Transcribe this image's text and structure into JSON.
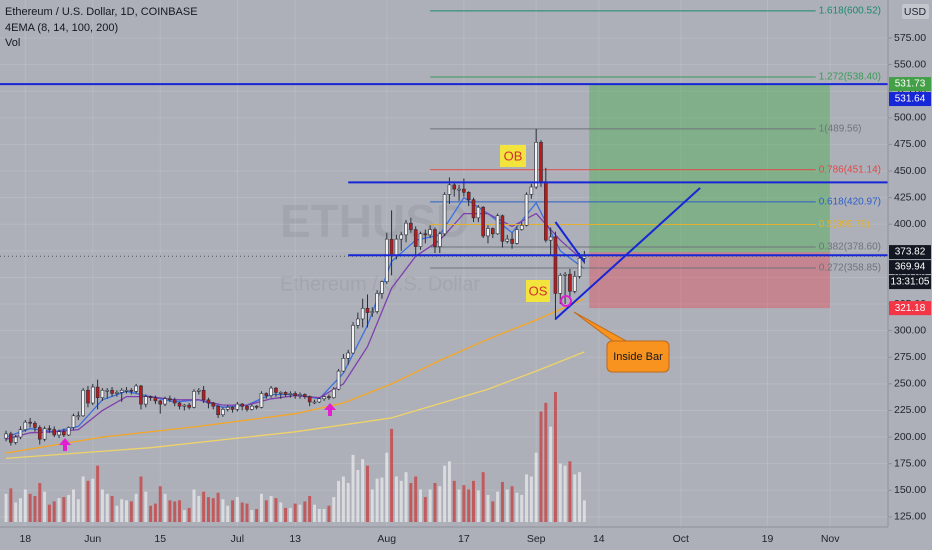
{
  "chart_data": {
    "type": "candlestick",
    "title": "Ethereum / U.S. Dollar, 1D, COINBASE",
    "indicator_label": "4EMA (8, 14, 100, 200)",
    "volume_label": "Vol",
    "currency": "USD",
    "watermark": "ETHUSD",
    "watermark_subtitle": "Ethereum / U.S. Dollar",
    "countdown": "13:31:05",
    "axis_label_color": "#131722",
    "up_color": "#f2f2f2",
    "down_color": "#b71c1c",
    "wick_color": "#2a2e39",
    "volume_up_color": "rgba(255,255,255,0.55)",
    "volume_down_color": "rgba(205,45,45,0.65)",
    "grid": true,
    "xlim": [
      -1.25,
      183
    ],
    "ylim": [
      115.5,
      610.7
    ],
    "xticks": [
      {
        "value": 4,
        "label": "18"
      },
      {
        "value": 18,
        "label": "Jun"
      },
      {
        "value": 32,
        "label": "15"
      },
      {
        "value": 48,
        "label": "Jul"
      },
      {
        "value": 60,
        "label": "13"
      },
      {
        "value": 79,
        "label": "Aug"
      },
      {
        "value": 95,
        "label": "17"
      },
      {
        "value": 110,
        "label": "Sep"
      },
      {
        "value": 123,
        "label": "14"
      },
      {
        "value": 140,
        "label": "Oct"
      },
      {
        "value": 158,
        "label": "19"
      },
      {
        "value": 171,
        "label": "Nov"
      }
    ],
    "yticks": [
      {
        "value": 125,
        "label": "125.00"
      },
      {
        "value": 150,
        "label": "150.00"
      },
      {
        "value": 175,
        "label": "175.00"
      },
      {
        "value": 200,
        "label": "200.00"
      },
      {
        "value": 225,
        "label": "225.00"
      },
      {
        "value": 250,
        "label": "250.00"
      },
      {
        "value": 275,
        "label": "275.00"
      },
      {
        "value": 300,
        "label": "300.00"
      },
      {
        "value": 325,
        "label": "325.00"
      },
      {
        "value": 350,
        "label": "350.00"
      },
      {
        "value": 375,
        "label": "375.00"
      },
      {
        "value": 400,
        "label": "400.00"
      },
      {
        "value": 425,
        "label": "425.00"
      },
      {
        "value": 450,
        "label": "450.00"
      },
      {
        "value": 475,
        "label": "475.00"
      },
      {
        "value": 500,
        "label": "500.00"
      },
      {
        "value": 525,
        "label": "525.00"
      },
      {
        "value": 550,
        "label": "550.00"
      },
      {
        "value": 575,
        "label": "575.00"
      }
    ],
    "x": [
      0,
      1,
      2,
      3,
      4,
      5,
      6,
      7,
      8,
      9,
      10,
      11,
      12,
      13,
      14,
      15,
      16,
      17,
      18,
      19,
      20,
      21,
      22,
      23,
      24,
      25,
      26,
      27,
      28,
      29,
      30,
      31,
      32,
      33,
      34,
      35,
      36,
      37,
      38,
      39,
      40,
      41,
      42,
      43,
      44,
      45,
      46,
      47,
      48,
      49,
      50,
      51,
      52,
      53,
      54,
      55,
      56,
      57,
      58,
      59,
      60,
      61,
      62,
      63,
      64,
      65,
      66,
      67,
      68,
      69,
      70,
      71,
      72,
      73,
      74,
      75,
      76,
      77,
      78,
      79,
      80,
      81,
      82,
      83,
      84,
      85,
      86,
      87,
      88,
      89,
      90,
      91,
      92,
      93,
      94,
      95,
      96,
      97,
      98,
      99,
      100,
      101,
      102,
      103,
      104,
      105,
      106,
      107,
      108,
      109,
      110,
      111,
      112,
      113,
      114,
      115,
      116,
      117,
      118,
      119,
      120
    ],
    "open": [
      199,
      203,
      195,
      200,
      207,
      214,
      213,
      209,
      198,
      208,
      207,
      202,
      205,
      202,
      209,
      220,
      220,
      244,
      232,
      247,
      237,
      244,
      244,
      241,
      242,
      244,
      244,
      243,
      248,
      231,
      238,
      237,
      234,
      231,
      236,
      235,
      232,
      229,
      230,
      228,
      243,
      244,
      235,
      232,
      229,
      221,
      226,
      228,
      226,
      231,
      229,
      226,
      229,
      228,
      241,
      239,
      246,
      242,
      242,
      240,
      241,
      239,
      240,
      238,
      233,
      233,
      236,
      238,
      237,
      245,
      262,
      274,
      279,
      305,
      311,
      321,
      317,
      318,
      335,
      346,
      386,
      371,
      386,
      390,
      401,
      395,
      379,
      391,
      390,
      395,
      379,
      391,
      428,
      437,
      433,
      433,
      430,
      423,
      406,
      416,
      389,
      396,
      391,
      408,
      384,
      386,
      382,
      395,
      399,
      428,
      435,
      477,
      440,
      385,
      388,
      335,
      352,
      353,
      337,
      351,
      368
    ],
    "high": [
      206,
      205,
      202,
      210,
      216,
      218,
      215,
      211,
      210,
      211,
      210,
      207,
      208,
      210,
      222,
      224,
      246,
      248,
      250,
      254,
      246,
      246,
      247,
      244,
      246,
      247,
      246,
      250,
      249,
      240,
      239,
      239,
      235,
      238,
      239,
      237,
      233,
      231,
      232,
      245,
      246,
      248,
      237,
      233,
      230,
      228,
      230,
      229,
      233,
      232,
      230,
      231,
      230,
      243,
      242,
      248,
      247,
      243,
      243,
      243,
      243,
      242,
      241,
      239,
      235,
      237,
      239,
      240,
      247,
      264,
      278,
      282,
      308,
      317,
      330,
      334,
      322,
      338,
      347,
      392,
      413,
      390,
      393,
      404,
      406,
      398,
      393,
      395,
      399,
      397,
      393,
      430,
      444,
      440,
      437,
      443,
      431,
      425,
      418,
      417,
      399,
      397,
      410,
      409,
      390,
      392,
      398,
      402,
      430,
      438,
      489.56,
      479,
      453,
      397,
      393,
      354,
      355,
      358,
      356,
      373,
      375
    ],
    "low": [
      196,
      192,
      193,
      198,
      205,
      209,
      205,
      193,
      196,
      204,
      200,
      199,
      200,
      201,
      207,
      216,
      219,
      228,
      230,
      226,
      234,
      236,
      238,
      238,
      233,
      241,
      240,
      241,
      226,
      228,
      234,
      231,
      222,
      229,
      233,
      229,
      226,
      225,
      226,
      227,
      240,
      232,
      227,
      226,
      218,
      219,
      224,
      223,
      224,
      225,
      224,
      225,
      226,
      227,
      236,
      237,
      238,
      236,
      238,
      237,
      236,
      236,
      236,
      229,
      231,
      232,
      234,
      235,
      236,
      244,
      261,
      268,
      278,
      302,
      303,
      303,
      313,
      316,
      330,
      344,
      352,
      367,
      375,
      383,
      392,
      371,
      376,
      382,
      387,
      373,
      373,
      389,
      419,
      426,
      422,
      426,
      417,
      402,
      402,
      387,
      382,
      387,
      390,
      378,
      382,
      377,
      381,
      394,
      398,
      424,
      433,
      435,
      383,
      370,
      310,
      325,
      325,
      330,
      335,
      349,
      363
    ],
    "close": [
      203,
      195,
      200,
      207,
      214,
      213,
      209,
      198,
      208,
      207,
      202,
      205,
      202,
      209,
      220,
      220,
      244,
      232,
      247,
      237,
      244,
      244,
      241,
      242,
      244,
      244,
      243,
      248,
      231,
      238,
      237,
      234,
      231,
      236,
      235,
      232,
      229,
      230,
      228,
      243,
      244,
      235,
      232,
      229,
      221,
      226,
      228,
      226,
      231,
      229,
      226,
      229,
      228,
      241,
      239,
      246,
      242,
      242,
      240,
      241,
      239,
      240,
      238,
      233,
      233,
      236,
      238,
      237,
      245,
      262,
      274,
      279,
      305,
      311,
      321,
      317,
      318,
      335,
      346,
      386,
      371,
      386,
      390,
      401,
      395,
      379,
      391,
      390,
      395,
      379,
      391,
      428,
      437,
      433,
      433,
      430,
      423,
      406,
      416,
      389,
      396,
      391,
      408,
      384,
      386,
      382,
      395,
      399,
      428,
      435,
      477,
      440,
      385,
      388,
      335,
      352,
      353,
      337,
      351,
      368,
      369.94
    ],
    "volume": [
      260,
      310,
      180,
      220,
      300,
      260,
      240,
      360,
      280,
      160,
      190,
      220,
      230,
      250,
      300,
      210,
      420,
      380,
      400,
      520,
      300,
      260,
      240,
      150,
      210,
      200,
      190,
      260,
      420,
      280,
      150,
      170,
      330,
      260,
      200,
      190,
      200,
      110,
      130,
      300,
      240,
      280,
      230,
      220,
      270,
      210,
      150,
      200,
      230,
      180,
      170,
      110,
      120,
      260,
      200,
      240,
      220,
      180,
      130,
      130,
      170,
      160,
      190,
      240,
      160,
      120,
      120,
      150,
      230,
      380,
      420,
      360,
      620,
      480,
      580,
      520,
      300,
      400,
      410,
      640,
      860,
      420,
      380,
      460,
      360,
      420,
      300,
      230,
      300,
      360,
      330,
      520,
      560,
      380,
      300,
      340,
      300,
      380,
      290,
      460,
      250,
      190,
      280,
      370,
      300,
      330,
      270,
      250,
      440,
      420,
      640,
      1020,
      1100,
      880,
      1200,
      540,
      520,
      560,
      440,
      460,
      200
    ],
    "ema": [
      {
        "color": "#3d6fe0",
        "x": [
          0,
          5,
          10,
          15,
          20,
          25,
          30,
          35,
          40,
          45,
          50,
          55,
          60,
          65,
          70,
          75,
          80,
          85,
          90,
          95,
          100,
          105,
          110,
          115,
          120
        ],
        "values": [
          200,
          208,
          205,
          210,
          235,
          243,
          238,
          233,
          235,
          228,
          230,
          240,
          240,
          236,
          260,
          305,
          365,
          385,
          390,
          425,
          410,
          392,
          420,
          375,
          358
        ]
      },
      {
        "color": "#7e3fae",
        "x": [
          0,
          5,
          10,
          15,
          20,
          25,
          30,
          35,
          40,
          45,
          50,
          55,
          60,
          65,
          70,
          75,
          80,
          85,
          90,
          95,
          100,
          105,
          110,
          115,
          120
        ],
        "values": [
          198,
          204,
          205,
          207,
          225,
          238,
          238,
          235,
          235,
          230,
          230,
          236,
          239,
          237,
          250,
          285,
          340,
          370,
          385,
          410,
          410,
          398,
          410,
          385,
          365
        ]
      },
      {
        "color": "#f5a623",
        "x": [
          0,
          20,
          40,
          60,
          70,
          80,
          90,
          100,
          110,
          120
        ],
        "values": [
          185,
          200,
          210,
          222,
          232,
          250,
          272,
          292,
          310,
          330
        ]
      },
      {
        "color": "#efd36a",
        "x": [
          0,
          30,
          60,
          80,
          100,
          110,
          120
        ],
        "values": [
          180,
          190,
          205,
          218,
          245,
          262,
          280
        ]
      }
    ],
    "fib_x": [
      88,
      168
    ],
    "fib_levels": [
      {
        "label": "1.618(600.52)",
        "value": 600.52,
        "color": "#1d8a6c"
      },
      {
        "label": "1.272(538.40)",
        "value": 538.4,
        "color": "#3b9a58"
      },
      {
        "label": "1(489.56)",
        "value": 489.56,
        "color": "#6f737c"
      },
      {
        "label": "0.786(451.14)",
        "value": 451.14,
        "color": "#e04848"
      },
      {
        "label": "0.618(420.97)",
        "value": 420.97,
        "color": "#2d5fc8"
      },
      {
        "label": "0.5(399.79)",
        "value": 399.79,
        "color": "#e3b12e"
      },
      {
        "label": "0.382(378.60)",
        "value": 378.6,
        "color": "#6f737c"
      },
      {
        "label": "0.272(358.85)",
        "value": 358.85,
        "color": "#6f737c"
      }
    ],
    "horizontal_lines": [
      {
        "value": 531.64,
        "x0": -1.25,
        "color": "#1726d6"
      },
      {
        "value": 439.3,
        "x0": 71,
        "color": "#1726d6"
      },
      {
        "value": 370.8,
        "x0": 71,
        "color": "#1726d6"
      }
    ],
    "trend_lines": [
      {
        "color": "#1726d6",
        "x": [
          114,
          120
        ],
        "values": [
          402.1,
          364.5
        ]
      },
      {
        "color": "#1726d6",
        "x": [
          114,
          144
        ],
        "values": [
          310.9,
          434
        ]
      }
    ],
    "position": {
      "x0": 121,
      "x1": 171,
      "target": 531.73,
      "entry": 373.82,
      "stop": 321.18,
      "target_color": "#43a047",
      "stop_color": "#f23645",
      "profit_fill": "rgba(76,175,80,0.45)",
      "loss_fill": "rgba(242,54,69,0.35)"
    },
    "annotations": {
      "ob": "OB",
      "os": "OS",
      "inside_bar": "Inside Bar"
    }
  }
}
